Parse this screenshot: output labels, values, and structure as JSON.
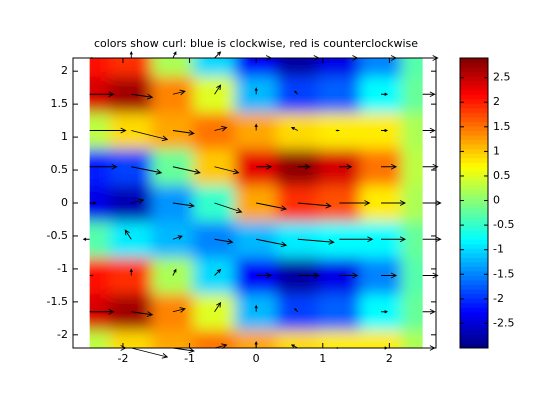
{
  "chart_data": {
    "type": "heatmap",
    "title": "colors show curl: blue is clockwise, red is counterclockwise",
    "colormap": "jet",
    "x": [
      -2.5,
      -1.875,
      -1.25,
      -0.625,
      0,
      0.625,
      1.25,
      1.875,
      2.5
    ],
    "y": [
      -2.2,
      -1.65,
      -1.1,
      -0.55,
      0,
      0.55,
      1.1,
      1.65,
      2.2
    ],
    "z": [
      [
        0.3,
        0.9,
        1.2,
        1.5,
        1.2,
        0.9,
        0.8,
        0.8,
        0.2
      ],
      [
        2.4,
        2.7,
        1.4,
        0.5,
        -1.2,
        -1.9,
        -1.7,
        -0.8,
        -0.2
      ],
      [
        2.1,
        1.9,
        0.2,
        -1.0,
        -2.3,
        -2.8,
        -2.4,
        -1.5,
        -0.3
      ],
      [
        -0.3,
        -0.9,
        -1.2,
        -1.5,
        -1.2,
        -0.9,
        -0.8,
        -0.8,
        -0.2
      ],
      [
        -2.4,
        -2.7,
        -1.4,
        -0.5,
        1.2,
        1.9,
        1.7,
        0.8,
        0.2
      ],
      [
        -2.1,
        -1.9,
        -0.2,
        1.0,
        2.3,
        2.8,
        2.4,
        1.5,
        0.3
      ],
      [
        0.3,
        0.9,
        1.2,
        1.5,
        1.2,
        0.9,
        0.8,
        0.8,
        0.2
      ],
      [
        2.4,
        2.7,
        1.4,
        0.5,
        -1.2,
        -1.9,
        -1.7,
        -0.8,
        -0.2
      ],
      [
        2.1,
        1.9,
        0.2,
        -1.0,
        -2.3,
        -2.8,
        -2.4,
        -1.5,
        -0.3
      ]
    ],
    "u": [
      [
        1.2,
        1.2,
        0.7,
        0.4,
        0,
        -0.2,
        -0.1,
        0.2,
        0.4
      ],
      [
        0.8,
        0.7,
        0.4,
        0.2,
        0,
        -0.1,
        0,
        0.2,
        0.4
      ],
      [
        0.1,
        0,
        0.1,
        0.2,
        0.5,
        0.7,
        0.6,
        0.5,
        0.5
      ],
      [
        -0.2,
        -0.2,
        0.3,
        0.6,
        1,
        1.2,
        1.1,
        0.8,
        0.6
      ],
      [
        0.2,
        0.4,
        0.7,
        0.9,
        1,
        1.1,
        1,
        0.8,
        0.6
      ],
      [
        0.9,
        1,
        0.9,
        0.8,
        0.5,
        0.4,
        0.4,
        0.5,
        0.5
      ],
      [
        1.2,
        1.2,
        0.7,
        0.4,
        0,
        -0.2,
        -0.1,
        0.2,
        0.4
      ],
      [
        0.8,
        0.7,
        0.4,
        0.2,
        0,
        -0.1,
        0,
        0.2,
        0.4
      ],
      [
        0.1,
        0,
        0.1,
        0.2,
        0.5,
        0.7,
        0.6,
        0.5,
        0.5
      ]
    ],
    "v": [
      [
        0,
        -0.3,
        -0.1,
        0.1,
        0.2,
        0.1,
        0,
        0,
        0
      ],
      [
        0,
        -0.1,
        0.1,
        0.3,
        0.2,
        0.1,
        0,
        0,
        0
      ],
      [
        0,
        0.2,
        0.2,
        0.2,
        0,
        0,
        0,
        0,
        0
      ],
      [
        0,
        0.3,
        0.1,
        -0.1,
        -0.2,
        -0.1,
        0,
        0,
        0
      ],
      [
        0,
        0.1,
        -0.1,
        -0.3,
        -0.2,
        -0.1,
        0,
        0,
        0
      ],
      [
        0,
        -0.2,
        -0.2,
        -0.2,
        0,
        0,
        0,
        0,
        0
      ],
      [
        0,
        -0.3,
        -0.1,
        0.1,
        0.2,
        0.1,
        0,
        0,
        0
      ],
      [
        0,
        -0.1,
        0.1,
        0.3,
        0.2,
        0.1,
        0,
        0,
        0
      ],
      [
        0,
        0.2,
        0.2,
        0.2,
        0,
        0,
        0,
        0,
        0
      ]
    ],
    "xlim": [
      -2.75,
      2.7
    ],
    "ylim": [
      -2.2,
      2.2
    ],
    "xticks": [
      -2,
      -1,
      0,
      1,
      2
    ],
    "yticks": [
      -2,
      -1.5,
      -1,
      -0.5,
      0,
      0.5,
      1,
      1.5,
      2
    ],
    "clim": [
      -3,
      2.9
    ],
    "cticks": [
      -2.5,
      -2,
      -1.5,
      -1,
      -0.5,
      0,
      0.5,
      1,
      1.5,
      2,
      2.5
    ]
  }
}
